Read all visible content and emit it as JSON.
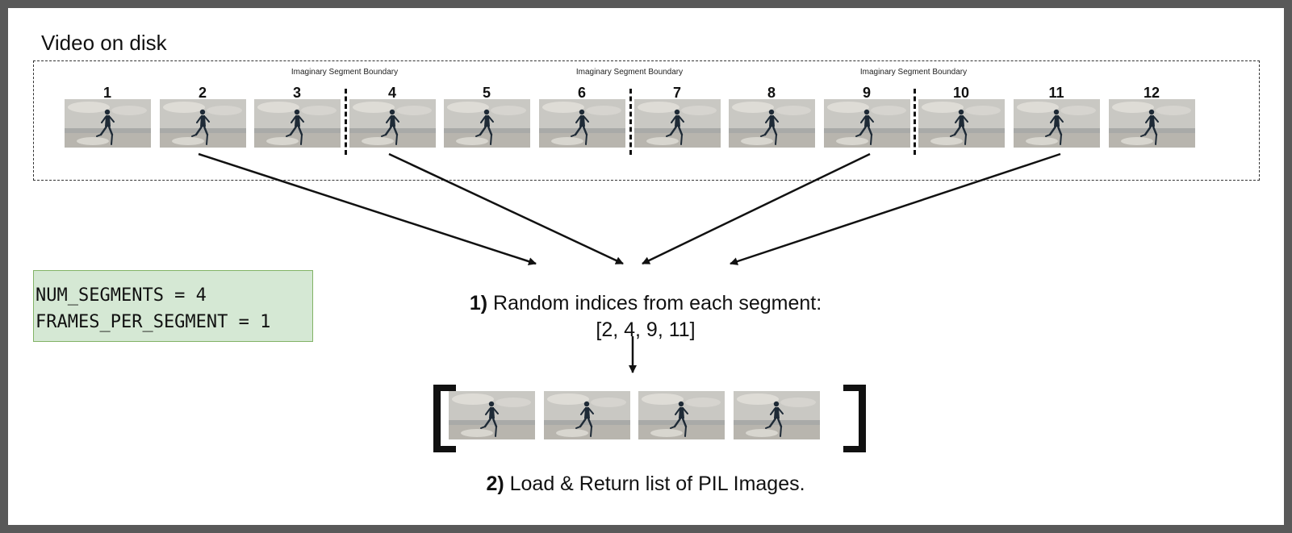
{
  "title": "Video on disk",
  "frames": [
    "1",
    "2",
    "3",
    "4",
    "5",
    "6",
    "7",
    "8",
    "9",
    "10",
    "11",
    "12"
  ],
  "segment_boundary_label": "Imaginary Segment Boundary",
  "config": {
    "line1": "NUM_SEGMENTS = 4",
    "line2": "FRAMES_PER_SEGMENT = 1"
  },
  "step1": {
    "number": "1)",
    "text": " Random indices from each segment:",
    "indices": "[2, 4, 9, 11]"
  },
  "step2": {
    "number": "2)",
    "text": " Load & Return list of PIL Images."
  },
  "colors": {
    "config_fill": "#d5e8d4",
    "config_border": "#82b366",
    "frame_sky": "#c9c8c3",
    "runner": "#1e2a36"
  }
}
